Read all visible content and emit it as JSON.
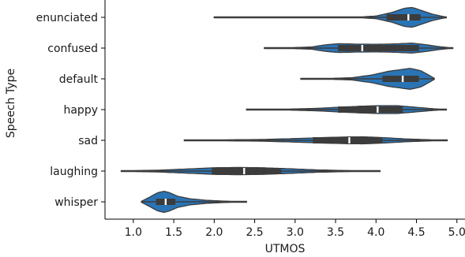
{
  "chart_data": {
    "type": "violin",
    "orientation": "horizontal",
    "xlabel": "UTMOS",
    "ylabel": "Speech Type",
    "xlim": [
      0.65,
      5.1
    ],
    "xticks": [
      1.0,
      1.5,
      2.0,
      2.5,
      3.0,
      3.5,
      4.0,
      4.5,
      5.0
    ],
    "xtick_labels": [
      "1.0",
      "1.5",
      "2.0",
      "2.5",
      "3.0",
      "3.5",
      "4.0",
      "4.5",
      "5.0"
    ],
    "grid": false,
    "legend": "none",
    "colors": {
      "violin_fill": "#2a74b5",
      "violin_edge": "#3c3c3c",
      "box": "#3c3c3c",
      "median": "#ffffff",
      "axes": "#000000"
    },
    "categories": [
      "enunciated",
      "confused",
      "default",
      "happy",
      "sad",
      "laughing",
      "whisper"
    ],
    "violins": [
      {
        "category": "enunciated",
        "min": 2.0,
        "q1": 4.13,
        "median": 4.4,
        "q3": 4.55,
        "max": 4.87,
        "whisker_low": 2.0,
        "whisker_high": 4.87,
        "density": [
          [
            2.0,
            0.0
          ],
          [
            2.5,
            0.0
          ],
          [
            3.0,
            0.0
          ],
          [
            3.5,
            0.01
          ],
          [
            3.8,
            0.03
          ],
          [
            4.0,
            0.12
          ],
          [
            4.2,
            0.45
          ],
          [
            4.35,
            0.82
          ],
          [
            4.45,
            0.9
          ],
          [
            4.55,
            0.65
          ],
          [
            4.7,
            0.28
          ],
          [
            4.87,
            0.02
          ]
        ]
      },
      {
        "category": "confused",
        "min": 2.62,
        "q1": 3.53,
        "median": 3.83,
        "q3": 4.53,
        "max": 4.95,
        "whisker_low": 2.62,
        "whisker_high": 4.95,
        "density": [
          [
            2.62,
            0.01
          ],
          [
            2.9,
            0.03
          ],
          [
            3.2,
            0.1
          ],
          [
            3.4,
            0.32
          ],
          [
            3.55,
            0.4
          ],
          [
            3.75,
            0.36
          ],
          [
            4.0,
            0.35
          ],
          [
            4.2,
            0.37
          ],
          [
            4.45,
            0.45
          ],
          [
            4.6,
            0.32
          ],
          [
            4.8,
            0.12
          ],
          [
            4.95,
            0.0
          ]
        ]
      },
      {
        "category": "default",
        "min": 3.07,
        "q1": 4.08,
        "median": 4.33,
        "q3": 4.53,
        "max": 4.72,
        "whisker_low": 3.07,
        "whisker_high": 4.72,
        "density": [
          [
            3.07,
            0.01
          ],
          [
            3.4,
            0.03
          ],
          [
            3.7,
            0.1
          ],
          [
            3.95,
            0.35
          ],
          [
            4.15,
            0.68
          ],
          [
            4.32,
            0.85
          ],
          [
            4.42,
            0.95
          ],
          [
            4.55,
            0.75
          ],
          [
            4.65,
            0.35
          ],
          [
            4.72,
            0.05
          ]
        ]
      },
      {
        "category": "happy",
        "min": 2.4,
        "q1": 3.53,
        "median": 4.02,
        "q3": 4.33,
        "max": 4.87,
        "whisker_low": 2.4,
        "whisker_high": 4.87,
        "density": [
          [
            2.4,
            0.01
          ],
          [
            2.9,
            0.04
          ],
          [
            3.3,
            0.12
          ],
          [
            3.55,
            0.22
          ],
          [
            3.8,
            0.3
          ],
          [
            4.05,
            0.36
          ],
          [
            4.25,
            0.36
          ],
          [
            4.45,
            0.24
          ],
          [
            4.7,
            0.08
          ],
          [
            4.87,
            0.0
          ]
        ]
      },
      {
        "category": "sad",
        "min": 1.63,
        "q1": 3.22,
        "median": 3.67,
        "q3": 4.08,
        "max": 4.88,
        "whisker_low": 1.63,
        "whisker_high": 4.88,
        "density": [
          [
            1.63,
            0.02
          ],
          [
            2.1,
            0.04
          ],
          [
            2.6,
            0.08
          ],
          [
            3.0,
            0.16
          ],
          [
            3.3,
            0.24
          ],
          [
            3.6,
            0.3
          ],
          [
            3.85,
            0.32
          ],
          [
            4.1,
            0.24
          ],
          [
            4.4,
            0.12
          ],
          [
            4.88,
            0.0
          ]
        ]
      },
      {
        "category": "laughing",
        "min": 0.85,
        "q1": 1.97,
        "median": 2.37,
        "q3": 2.83,
        "max": 4.05,
        "whisker_low": 0.85,
        "whisker_high": 4.05,
        "density": [
          [
            0.85,
            0.02
          ],
          [
            1.3,
            0.08
          ],
          [
            1.7,
            0.2
          ],
          [
            2.0,
            0.3
          ],
          [
            2.3,
            0.33
          ],
          [
            2.6,
            0.3
          ],
          [
            2.9,
            0.22
          ],
          [
            3.3,
            0.1
          ],
          [
            3.7,
            0.04
          ],
          [
            4.05,
            0.0
          ]
        ]
      },
      {
        "category": "whisper",
        "min": 1.1,
        "q1": 1.28,
        "median": 1.4,
        "q3": 1.52,
        "max": 2.4,
        "whisker_low": 1.1,
        "whisker_high": 2.4,
        "density": [
          [
            1.1,
            0.04
          ],
          [
            1.2,
            0.42
          ],
          [
            1.3,
            0.82
          ],
          [
            1.38,
            0.96
          ],
          [
            1.45,
            0.82
          ],
          [
            1.55,
            0.5
          ],
          [
            1.7,
            0.28
          ],
          [
            1.9,
            0.14
          ],
          [
            2.1,
            0.07
          ],
          [
            2.4,
            0.0
          ]
        ]
      }
    ]
  }
}
